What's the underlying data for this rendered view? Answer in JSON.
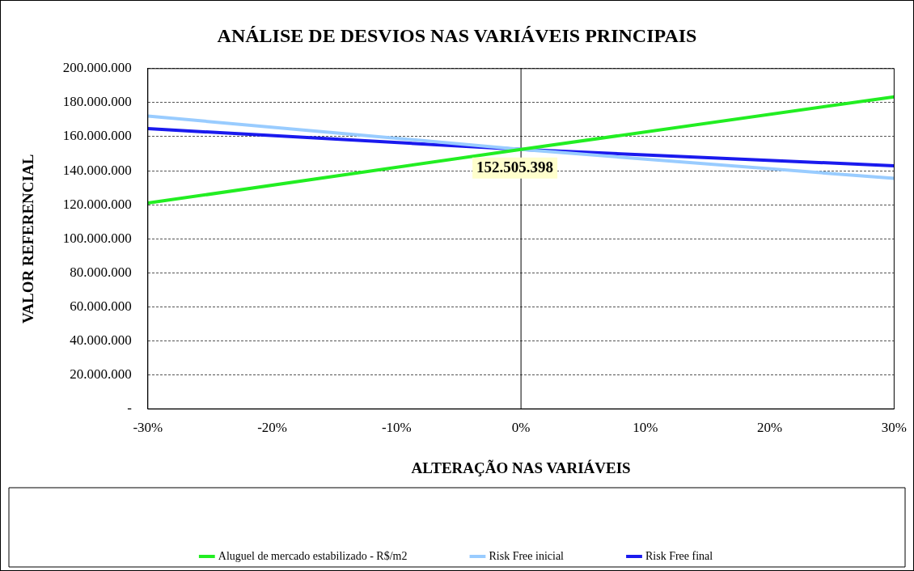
{
  "chart_data": {
    "type": "line",
    "title": "ANÁLISE DE DESVIOS NAS VARIÁVEIS PRINCIPAIS",
    "xlabel": "ALTERAÇÃO NAS VARIÁVEIS",
    "ylabel": "VALOR REFERENCIAL",
    "x": [
      -30,
      0,
      30
    ],
    "series": [
      {
        "name": "Aluguel de mercado estabilizado - R$/m2",
        "color": "#22ee22",
        "values": [
          121000000,
          152505398,
          183400000
        ]
      },
      {
        "name": "Risk Free inicial",
        "color": "#99ccff",
        "values": [
          172100000,
          152505398,
          135500000
        ]
      },
      {
        "name": "Risk Free final",
        "color": "#1a1aee",
        "values": [
          164700000,
          152505398,
          142900000
        ]
      }
    ],
    "xlim": [
      -30,
      30
    ],
    "xticks": [
      {
        "value": -30,
        "label": "-30%"
      },
      {
        "value": -20,
        "label": "-20%"
      },
      {
        "value": -10,
        "label": "-10%"
      },
      {
        "value": 0,
        "label": "0%"
      },
      {
        "value": 10,
        "label": "10%"
      },
      {
        "value": 20,
        "label": "20%"
      },
      {
        "value": 30,
        "label": "30%"
      }
    ],
    "ylim": [
      0,
      200000000
    ],
    "yticks": [
      {
        "value": 0,
        "label": "-"
      },
      {
        "value": 20000000,
        "label": "20.000.000"
      },
      {
        "value": 40000000,
        "label": "40.000.000"
      },
      {
        "value": 60000000,
        "label": "60.000.000"
      },
      {
        "value": 80000000,
        "label": "80.000.000"
      },
      {
        "value": 100000000,
        "label": "100.000.000"
      },
      {
        "value": 120000000,
        "label": "120.000.000"
      },
      {
        "value": 140000000,
        "label": "140.000.000"
      },
      {
        "value": 160000000,
        "label": "160.000.000"
      },
      {
        "value": 180000000,
        "label": "180.000.000"
      },
      {
        "value": 200000000,
        "label": "200.000.000"
      }
    ],
    "ref_lines": [
      {
        "axis": "x",
        "value": 0,
        "color": "#000000"
      }
    ],
    "annotations": [
      {
        "text": "152.505.398",
        "x": 0,
        "y": 152505398
      }
    ],
    "grid": "y",
    "legend": "bottom",
    "marker": "none",
    "line_style": "solid"
  }
}
